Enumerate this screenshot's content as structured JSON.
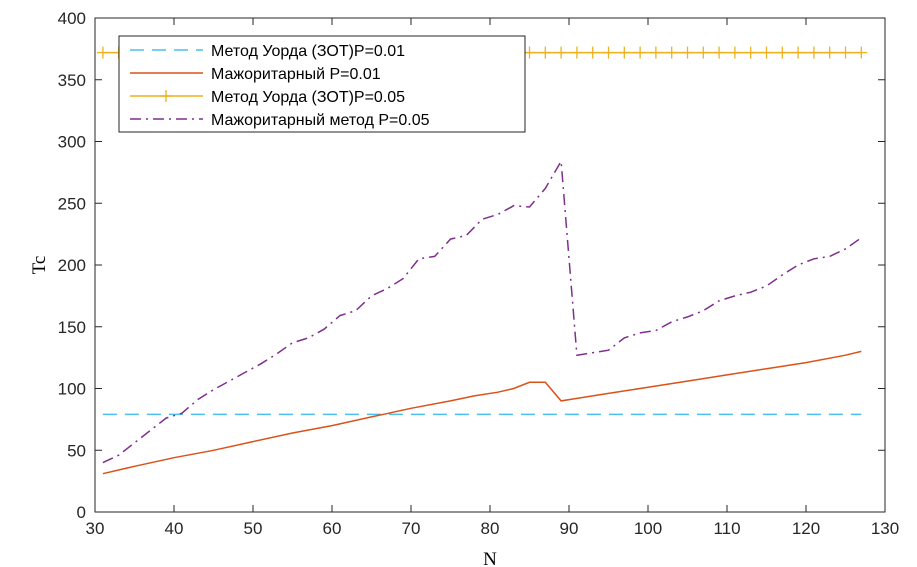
{
  "chart_data": {
    "type": "line",
    "title": "",
    "xlabel": "N",
    "ylabel": "Tc",
    "xlim": [
      30,
      130
    ],
    "ylim": [
      0,
      400
    ],
    "xticks": [
      30,
      40,
      50,
      60,
      70,
      80,
      90,
      100,
      110,
      120,
      130
    ],
    "yticks": [
      0,
      50,
      100,
      150,
      200,
      250,
      300,
      350,
      400
    ],
    "grid": false,
    "legend_position": "top-left",
    "series": [
      {
        "name": "Метод Уорда (ЗОТ)Р=0.01",
        "color": "#4DBEEE",
        "style": "dashed",
        "x": [
          31,
          127
        ],
        "y": [
          79,
          79
        ]
      },
      {
        "name": "Мажоритарный Р=0.01",
        "color": "#D95319",
        "style": "solid",
        "x": [
          31,
          35,
          40,
          45,
          50,
          55,
          60,
          65,
          70,
          75,
          78,
          81,
          83,
          85,
          87,
          89,
          91,
          95,
          100,
          105,
          110,
          115,
          120,
          125,
          127
        ],
        "y": [
          31,
          37,
          44,
          50,
          57,
          64,
          70,
          77,
          84,
          90,
          94,
          97,
          100,
          105,
          105,
          90,
          92,
          96,
          101,
          106,
          111,
          116,
          121,
          127,
          130
        ]
      },
      {
        "name": "Метод Уорда (ЗОТ)Р=0.05",
        "color": "#EDB120",
        "style": "solid-plus",
        "x": [
          31,
          33,
          35,
          37,
          39,
          41,
          43,
          45,
          47,
          49,
          51,
          53,
          55,
          57,
          59,
          61,
          63,
          65,
          67,
          69,
          71,
          73,
          75,
          77,
          79,
          81,
          83,
          85,
          87,
          89,
          91,
          93,
          95,
          97,
          99,
          101,
          103,
          105,
          107,
          109,
          111,
          113,
          115,
          117,
          119,
          121,
          123,
          125,
          127
        ],
        "y": [
          372,
          372,
          372,
          372,
          372,
          372,
          372,
          372,
          372,
          372,
          372,
          372,
          372,
          372,
          372,
          372,
          372,
          372,
          372,
          372,
          372,
          372,
          372,
          372,
          372,
          372,
          372,
          372,
          372,
          372,
          372,
          372,
          372,
          372,
          372,
          372,
          372,
          372,
          372,
          372,
          372,
          372,
          372,
          372,
          372,
          372,
          372,
          372,
          372
        ]
      },
      {
        "name": "Мажоритарный метод Р=0.05",
        "color": "#7E2F8E",
        "style": "dashdot",
        "x": [
          31,
          33,
          35,
          37,
          39,
          41,
          43,
          45,
          47,
          49,
          51,
          53,
          55,
          57,
          59,
          61,
          63,
          65,
          67,
          69,
          71,
          73,
          75,
          77,
          79,
          81,
          83,
          85,
          87,
          89,
          91,
          93,
          95,
          97,
          99,
          101,
          103,
          105,
          107,
          109,
          111,
          113,
          115,
          117,
          119,
          121,
          123,
          125,
          127
        ],
        "y": [
          40,
          46,
          56,
          66,
          76,
          80,
          91,
          99,
          106,
          113,
          120,
          128,
          137,
          141,
          148,
          159,
          163,
          175,
          181,
          189,
          205,
          207,
          221,
          224,
          237,
          241,
          248,
          247,
          262,
          284,
          127,
          129,
          131,
          141,
          145,
          147,
          154,
          158,
          163,
          171,
          175,
          178,
          183,
          192,
          200,
          205,
          207,
          213,
          222
        ]
      }
    ]
  }
}
